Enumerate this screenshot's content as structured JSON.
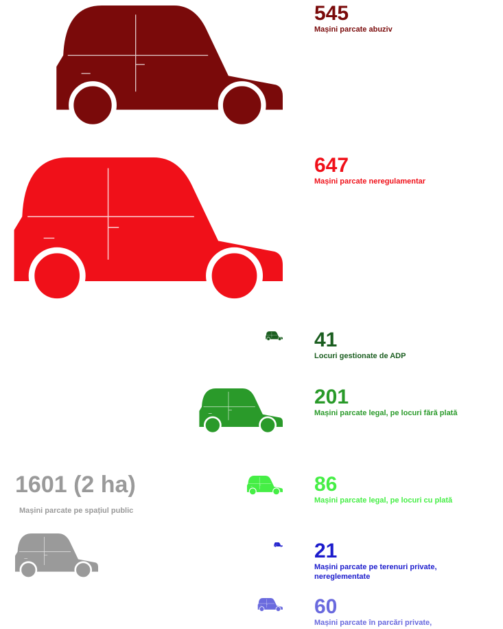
{
  "chart_data": {
    "type": "pictogram",
    "items": [
      {
        "value": 545,
        "label": "Mașini parcate abuziv",
        "color": "#7a0a0a"
      },
      {
        "value": 647,
        "label": "Mașini parcate neregulamentar",
        "color": "#f01019"
      },
      {
        "value": 41,
        "label": "Locuri gestionate de ADP",
        "color": "#1b5e20"
      },
      {
        "value": 201,
        "label": "Mașini parcate legal, pe locuri fără plată",
        "color": "#2a9a2a"
      },
      {
        "value": 86,
        "label": "Mașini parcate legal, pe locuri cu plată",
        "color": "#45ee45"
      },
      {
        "value": 21,
        "label": "Mașini parcate pe terenuri private, nereglementate",
        "color": "#1c1ccc"
      },
      {
        "value": 60,
        "label": "Mașini parcate în parcări private,",
        "color": "#6a6ade"
      }
    ],
    "total": {
      "value": 1601,
      "value_label": "1601 (2 ha)",
      "label": "Mașini parcate pe spațiul public",
      "color": "#9a9a9a"
    }
  }
}
